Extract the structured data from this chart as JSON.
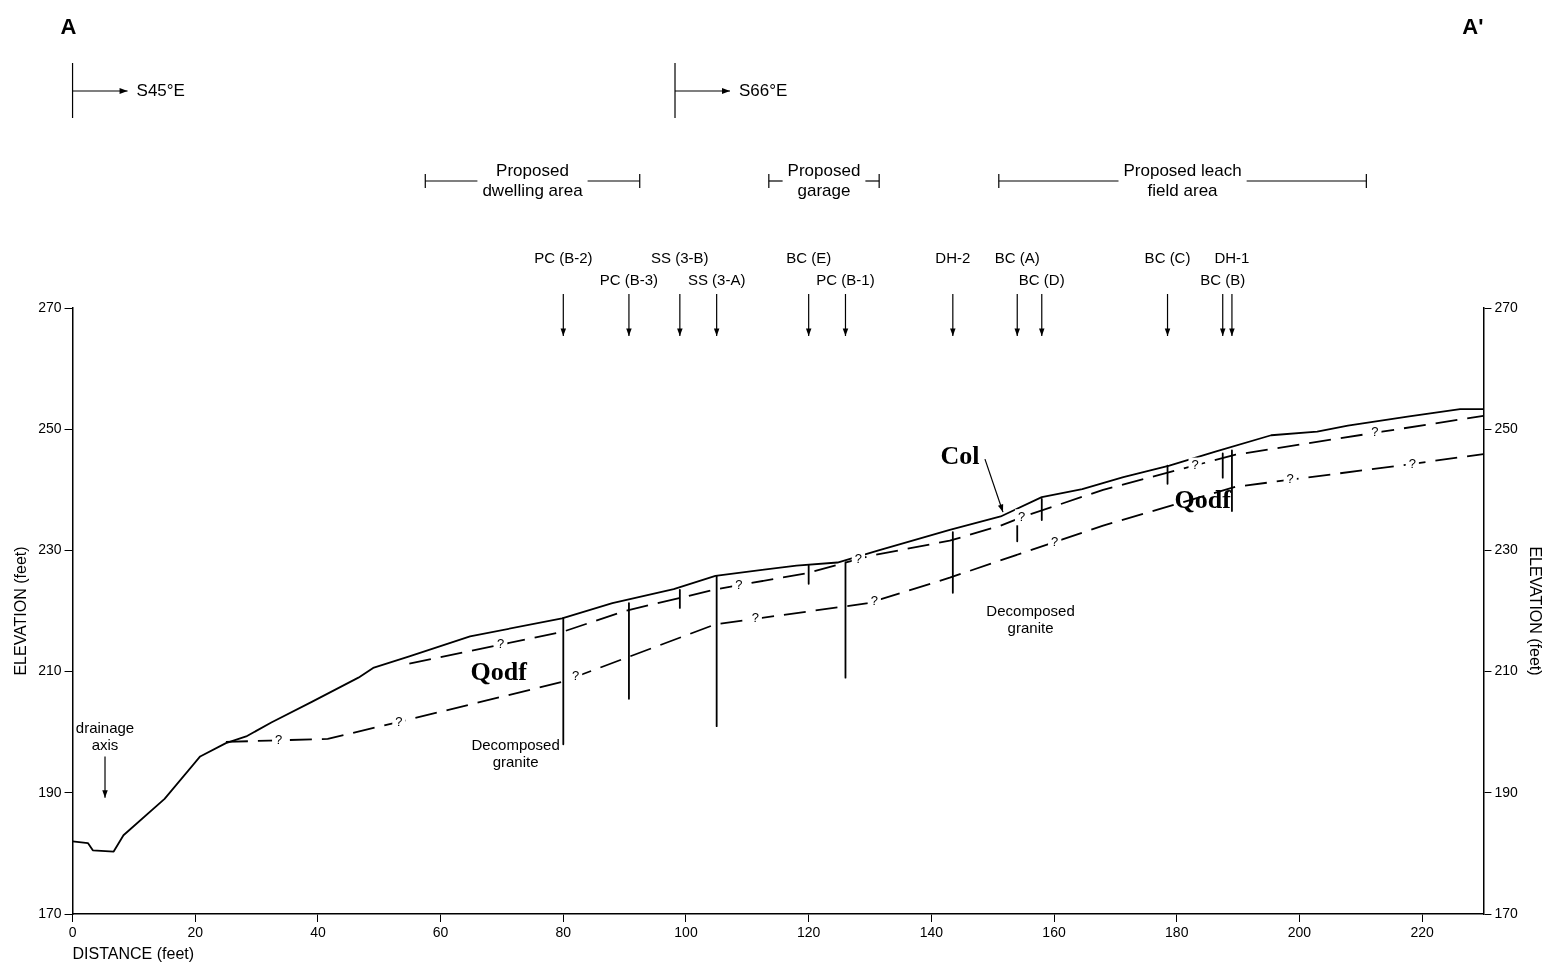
{
  "chart_data": {
    "type": "line",
    "xlabel": "DISTANCE (feet)",
    "ylabel": "ELEVATION (feet)",
    "y2label": "ELEVATION (feet)",
    "xlim": [
      0,
      230
    ],
    "xticks": [
      0,
      20,
      40,
      60,
      80,
      100,
      120,
      140,
      160,
      180,
      200,
      220
    ],
    "ylim": [
      170,
      270
    ],
    "yticks": [
      170,
      190,
      210,
      230,
      250,
      270
    ],
    "y2lim": [
      170,
      270
    ],
    "y2ticks": [
      170,
      190,
      210,
      230,
      250,
      270
    ],
    "grid": false,
    "legend": false,
    "marker": "none",
    "line_style": "solid",
    "color": "#000000",
    "series": [
      {
        "x": [
          0,
          2.5,
          3.3,
          6.7,
          8.3,
          15,
          20.8,
          25,
          28.3,
          32.4,
          39,
          46.6,
          49,
          54.9,
          64.8,
          79.8,
          88,
          98,
          104.8,
          118,
          124.7,
          131.4,
          143,
          151.3,
          153.8,
          158,
          164.6,
          171.3,
          178.8,
          186.3,
          195.4,
          202.9,
          207.9,
          217.9,
          226.2,
          230
        ],
        "values": [
          182,
          181.7,
          180.5,
          180.3,
          183,
          189,
          196,
          198.2,
          199.3,
          201.6,
          205,
          209,
          210.6,
          212.5,
          215.8,
          218.8,
          221.3,
          223.6,
          225.8,
          227.5,
          228,
          230,
          233.4,
          235.6,
          236.8,
          238.8,
          240.1,
          242.1,
          244,
          246.3,
          249,
          249.6,
          250.6,
          252.1,
          253.3,
          253.3
        ]
      },
      {
        "line_style": "dashed",
        "x": [
          54.9,
          80,
          90,
          105,
          120,
          130,
          143,
          151.3,
          154.8,
          168,
          189.6,
          212.9,
          230
        ],
        "values": [
          211.3,
          216.6,
          220,
          223.6,
          226.3,
          229.1,
          231.6,
          234.1,
          235.5,
          240,
          245.8,
          249.5,
          252.2
        ]
      },
      {
        "line_style": "dashed",
        "x": [
          25,
          41.6,
          54.9,
          79.8,
          104.8,
          129.7,
          143,
          168,
          189.6,
          217.9,
          230
        ],
        "values": [
          198.4,
          198.9,
          202.1,
          208.3,
          217.8,
          221.3,
          225.5,
          234.1,
          240.5,
          244.2,
          245.9
        ]
      },
      {
        "x": [
          80,
          80
        ],
        "values": [
          218.8,
          198
        ]
      },
      {
        "x": [
          90.7,
          90.7
        ],
        "values": [
          221.3,
          205.5
        ]
      },
      {
        "x": [
          99,
          99
        ],
        "values": [
          223.5,
          220.5
        ]
      },
      {
        "x": [
          105,
          105
        ],
        "values": [
          225.8,
          201
        ]
      },
      {
        "x": [
          120,
          120
        ],
        "values": [
          227.5,
          224.5
        ]
      },
      {
        "x": [
          126,
          126
        ],
        "values": [
          228,
          209
        ]
      },
      {
        "x": [
          143.5,
          143.5
        ],
        "values": [
          233,
          223
        ]
      },
      {
        "x": [
          154,
          154
        ],
        "values": [
          236.5,
          231.5
        ]
      },
      {
        "x": [
          158,
          158
        ],
        "values": [
          238.5,
          235
        ]
      },
      {
        "x": [
          178.5,
          178.5
        ],
        "values": [
          244,
          241
        ]
      },
      {
        "x": [
          187.5,
          187.5
        ],
        "values": [
          246,
          242
        ]
      },
      {
        "x": [
          189,
          189
        ],
        "values": [
          246.5,
          236.5
        ]
      }
    ],
    "annotations": [
      "A",
      "A'",
      "Qodf",
      "Qodf",
      "Decomposed granite",
      "Decomposed granite",
      "drainage axis",
      "S45°E",
      "S66°E",
      "Proposed\ndwelling area",
      "Proposed\ngarage",
      "Proposed leach\nfield area",
      "PC (B-2)",
      "PC (B-3)",
      "SS (3-B)",
      "SS (3-A)",
      "BC (E)",
      "PC (B-1)",
      "DH-2",
      "BC (A)",
      "BC (D)",
      "BC (C)",
      "BC (B)",
      "DH-1",
      {
        "text": "Col",
        "x": 152,
        "y": 235.5
      },
      {
        "text": "?",
        "x": 69.8,
        "y": 214.45
      },
      {
        "text": "?",
        "x": 108.6,
        "y": 224.25
      },
      {
        "text": "?",
        "x": 128.1,
        "y": 228.57
      },
      {
        "text": "?",
        "x": 154.7,
        "y": 235.46
      },
      {
        "text": "?",
        "x": 183,
        "y": 244
      },
      {
        "text": "?",
        "x": 212.3,
        "y": 249.4
      },
      {
        "text": "?",
        "x": 33.6,
        "y": 198.66
      },
      {
        "text": "?",
        "x": 53.2,
        "y": 201.69
      },
      {
        "text": "?",
        "x": 82,
        "y": 209.14
      },
      {
        "text": "?",
        "x": 111.3,
        "y": 218.71
      },
      {
        "text": "?",
        "x": 130.7,
        "y": 221.62
      },
      {
        "text": "?",
        "x": 160.1,
        "y": 231.38
      },
      {
        "text": "?",
        "x": 198.5,
        "y": 241.66
      },
      {
        "text": "?",
        "x": 218.4,
        "y": 244.27
      }
    ]
  }
}
